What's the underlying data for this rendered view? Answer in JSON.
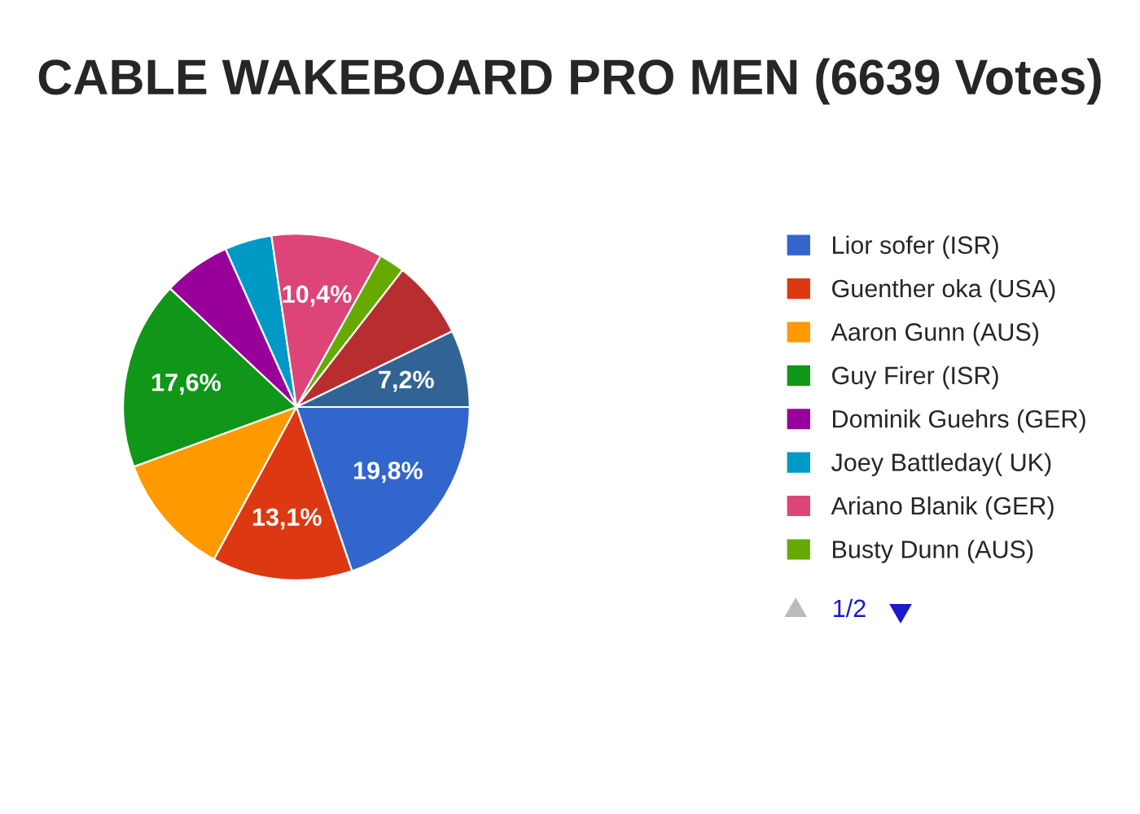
{
  "chart_data": {
    "type": "pie",
    "title": "CABLE WAKEBOARD PRO MEN (6639 Votes)",
    "categories": [
      "Lior sofer (ISR)",
      "Guenther oka (USA)",
      "Aaron Gunn (AUS)",
      "Guy Firer (ISR)",
      "Dominik Guehrs (GER)",
      "Joey Battleday( UK)",
      "Ariano Blanik (GER)",
      "Busty Dunn (AUS)",
      null,
      null
    ],
    "values": [
      19.8,
      13.1,
      11.5,
      17.6,
      6.3,
      4.4,
      10.4,
      2.4,
      7.3,
      7.2
    ],
    "value_labels": [
      "19,8%",
      "13,1%",
      null,
      "17,6%",
      null,
      null,
      "10,4%",
      null,
      null,
      "7,2%"
    ],
    "colors": [
      "#3366cc",
      "#dc3912",
      "#ff9900",
      "#109618",
      "#990099",
      "#0099c6",
      "#dd4477",
      "#66aa00",
      "#b82e2e",
      "#316395"
    ],
    "legend": "right",
    "annotations": [
      "1/2"
    ]
  }
}
